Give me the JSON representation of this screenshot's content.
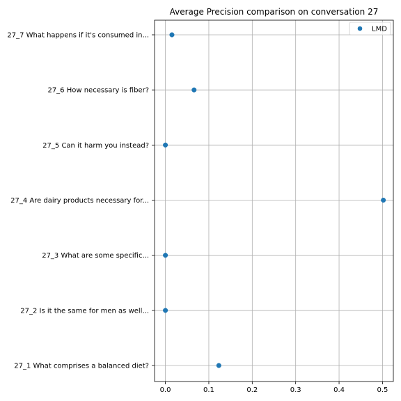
{
  "chart_data": {
    "type": "scatter",
    "title": "Average Precision comparison on conversation 27",
    "xlabel": "",
    "ylabel": "",
    "xlim": [
      -0.025,
      0.525
    ],
    "x_ticks": [
      0.0,
      0.1,
      0.2,
      0.3,
      0.4,
      0.5
    ],
    "x_tick_labels": [
      "0.0",
      "0.1",
      "0.2",
      "0.3",
      "0.4",
      "0.5"
    ],
    "categories": [
      "27_1 What comprises a balanced diet?",
      "27_2 Is it the same for men as well...",
      "27_3 What are some specific...",
      "27_4 Are dairy products necessary for...",
      "27_5 Can it harm you instead?",
      "27_6 How necessary is fiber?",
      "27_7 What happens if it's consumed in..."
    ],
    "series": [
      {
        "name": "LMD",
        "color": "#1f77b4",
        "values": [
          0.123,
          0.0,
          0.0,
          0.502,
          0.0,
          0.066,
          0.015
        ]
      }
    ],
    "grid": true,
    "legend_position": "upper-right"
  }
}
